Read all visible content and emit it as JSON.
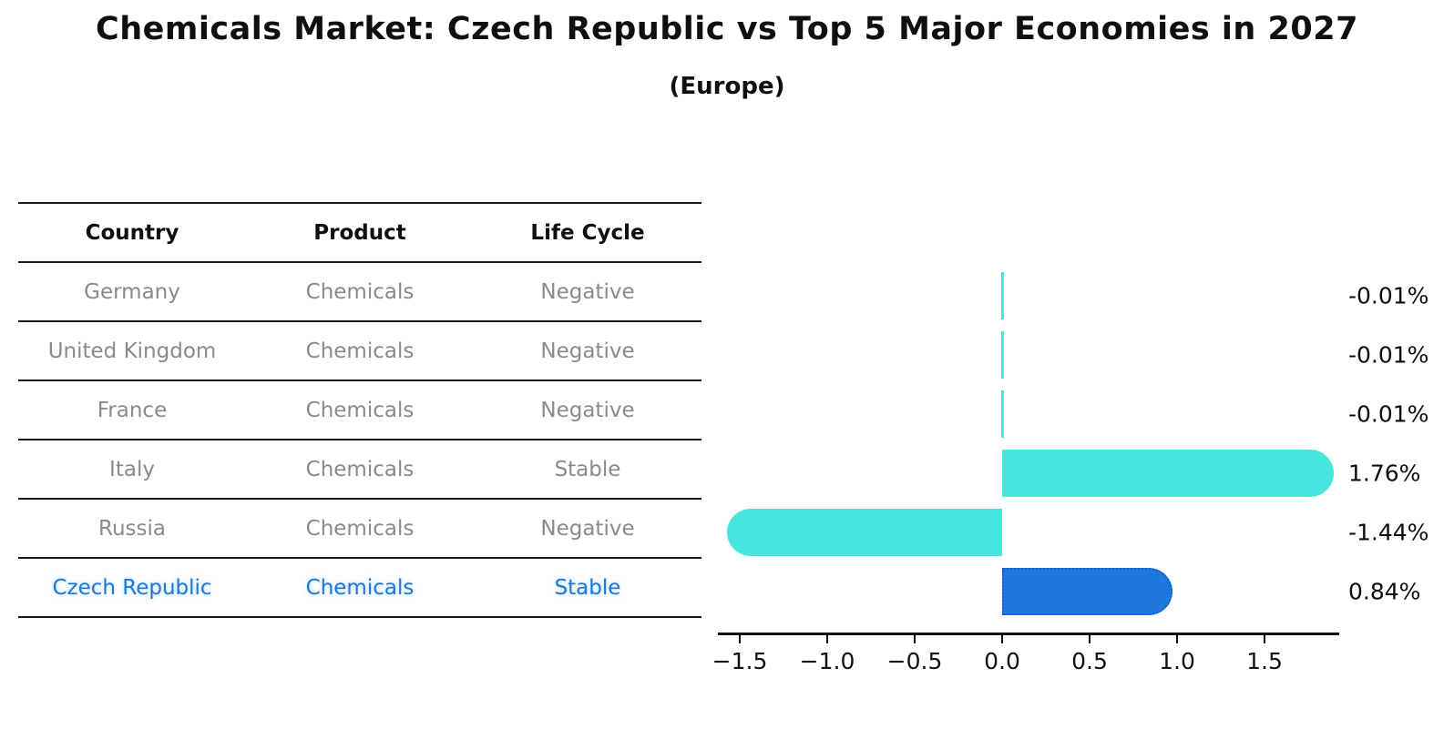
{
  "title": "Chemicals Market: Czech Republic vs Top 5 Major Economies in 2027",
  "subtitle": "(Europe)",
  "table": {
    "headers": [
      "Country",
      "Product",
      "Life Cycle"
    ],
    "rows": [
      {
        "country": "Germany",
        "product": "Chemicals",
        "life_cycle": "Negative"
      },
      {
        "country": "United Kingdom",
        "product": "Chemicals",
        "life_cycle": "Negative"
      },
      {
        "country": "France",
        "product": "Chemicals",
        "life_cycle": "Negative"
      },
      {
        "country": "Italy",
        "product": "Chemicals",
        "life_cycle": "Stable"
      },
      {
        "country": "Russia",
        "product": "Chemicals",
        "life_cycle": "Negative"
      },
      {
        "country": "Czech Republic",
        "product": "Chemicals",
        "life_cycle": "Stable"
      }
    ],
    "highlight_row_index": 5
  },
  "chart_data": {
    "type": "bar",
    "orientation": "horizontal",
    "title": "Chemicals Market: Czech Republic vs Top 5 Major Economies in 2027",
    "subtitle": "(Europe)",
    "categories": [
      "Germany",
      "United Kingdom",
      "France",
      "Italy",
      "Russia",
      "Czech Republic"
    ],
    "values": [
      -0.01,
      -0.01,
      -0.01,
      1.76,
      -1.44,
      0.84
    ],
    "value_labels": [
      "-0.01%",
      "-0.01%",
      "-0.01%",
      "1.76%",
      "-1.44%",
      "0.84%"
    ],
    "unit": "percent",
    "highlight_index": 5,
    "x_ticks": [
      -1.5,
      -1.0,
      -0.5,
      0.0,
      0.5,
      1.0,
      1.5
    ],
    "x_tick_labels": [
      "−1.5",
      "−1.0",
      "−0.5",
      "0.0",
      "0.5",
      "1.0",
      "1.5"
    ],
    "xlim": [
      -1.63,
      1.93
    ],
    "grid": false,
    "legend": false,
    "colors": {
      "bar_default": "#46e6de",
      "bar_highlight": "#1e78dc",
      "bar_highlight_border": "#0e5fd0",
      "axis": "#111111",
      "table_text": "#8a8a8a",
      "table_header_text": "#0f0f0f",
      "highlight_text": "#2478d4"
    }
  }
}
